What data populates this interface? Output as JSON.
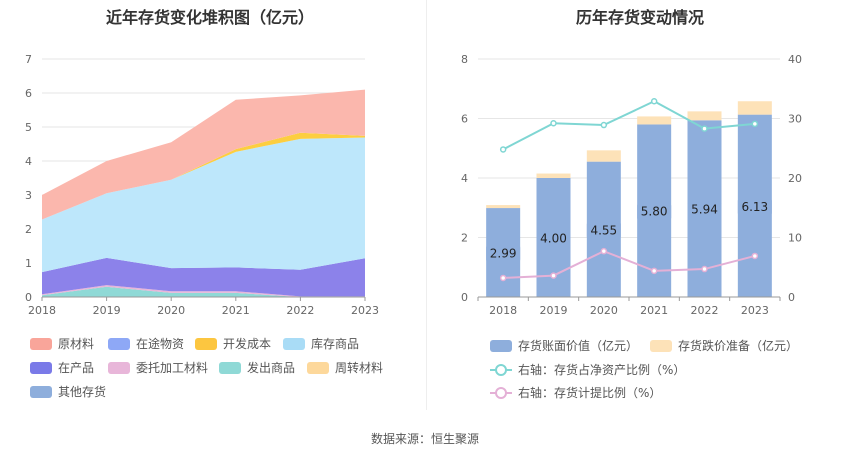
{
  "chart_data": [
    {
      "type": "area",
      "title": "近年存货变化堆积图（亿元）",
      "stacked": true,
      "categories": [
        "2018",
        "2019",
        "2020",
        "2021",
        "2022",
        "2023"
      ],
      "ylim": [
        0,
        7
      ],
      "yticks": [
        "0",
        "1",
        "2",
        "3",
        "4",
        "5",
        "6",
        "7"
      ],
      "series": [
        {
          "name": "其他存货",
          "color": "#8eaedc",
          "values": [
            0,
            0,
            0,
            0,
            0,
            0
          ]
        },
        {
          "name": "周转材料",
          "color": "#fdd89b",
          "values": [
            0,
            0,
            0,
            0,
            0,
            0
          ]
        },
        {
          "name": "发出商品",
          "color": "#8fd9d6",
          "values": [
            0.05,
            0.3,
            0.12,
            0.12,
            0.0,
            0.0
          ]
        },
        {
          "name": "委托加工材料",
          "color": "#e8b6d9",
          "values": [
            0.03,
            0.05,
            0.05,
            0.05,
            0.02,
            0.02
          ]
        },
        {
          "name": "在产品",
          "color": "#8c82ea",
          "values": [
            0.65,
            0.8,
            0.68,
            0.7,
            0.78,
            1.12
          ]
        },
        {
          "name": "库存商品",
          "color": "#bde7fb",
          "values": [
            1.55,
            1.9,
            2.6,
            3.4,
            3.85,
            3.55
          ]
        },
        {
          "name": "开发成本",
          "color": "#fcce40",
          "values": [
            0,
            0,
            0,
            0.08,
            0.18,
            0.05
          ]
        },
        {
          "name": "在途物资",
          "color": "#8ea8f6",
          "values": [
            0,
            0,
            0,
            0,
            0,
            0
          ]
        },
        {
          "name": "原材料",
          "color": "#fbb7ad",
          "values": [
            0.72,
            0.95,
            1.1,
            1.45,
            1.1,
            1.36
          ]
        }
      ],
      "legend": [
        {
          "name": "原材料",
          "color": "#f9a59a"
        },
        {
          "name": "在途物资",
          "color": "#8ea8f6"
        },
        {
          "name": "开发成本",
          "color": "#fcc640"
        },
        {
          "name": "库存商品",
          "color": "#a9dcf6"
        },
        {
          "name": "在产品",
          "color": "#7a7ae8"
        },
        {
          "name": "委托加工材料",
          "color": "#e8b6d9"
        },
        {
          "name": "发出商品",
          "color": "#8fd9d6"
        },
        {
          "name": "周转材料",
          "color": "#fdd89b"
        },
        {
          "name": "其他存货",
          "color": "#8eaedc"
        }
      ]
    },
    {
      "type": "bar",
      "title": "历年存货变动情况",
      "categories": [
        "2018",
        "2019",
        "2020",
        "2021",
        "2022",
        "2023"
      ],
      "ylim": [
        0,
        8
      ],
      "yticks": [
        "0",
        "2",
        "4",
        "6",
        "8"
      ],
      "y2lim": [
        0,
        40
      ],
      "y2ticks": [
        "0",
        "10",
        "20",
        "30",
        "40"
      ],
      "bar_series": [
        {
          "name": "存货账面价值（亿元）",
          "color": "#8eaedc",
          "values": [
            2.99,
            4.0,
            4.55,
            5.8,
            5.94,
            6.13
          ],
          "labels": [
            "2.99",
            "4.00",
            "4.55",
            "5.80",
            "5.94",
            "6.13"
          ]
        },
        {
          "name": "存货跌价准备（亿元）",
          "color": "#fde2b8",
          "values": [
            0.1,
            0.15,
            0.38,
            0.27,
            0.3,
            0.45
          ]
        }
      ],
      "line_series": [
        {
          "name": "右轴：存货占净资产比例（%）",
          "color": "#7fd6d3",
          "values": [
            24.8,
            29.2,
            28.9,
            32.9,
            28.3,
            29.1
          ]
        },
        {
          "name": "右轴：存货计提比例（%）",
          "color": "#e4b0d6",
          "values": [
            3.2,
            3.6,
            7.7,
            4.4,
            4.7,
            6.9
          ]
        }
      ]
    }
  ],
  "source": "数据来源：恒生聚源"
}
